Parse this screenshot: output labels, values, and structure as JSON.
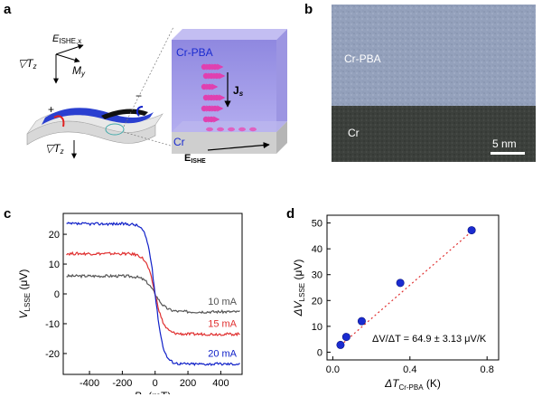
{
  "panels": {
    "a": {
      "letter": "a",
      "axis_e": "E",
      "axis_e_sub": "ISHE,x",
      "axis_grad": "▽T",
      "axis_grad_sub": "z",
      "axis_m": "M",
      "axis_m_sub": "y",
      "plus": "+",
      "minus": "−",
      "device_grad": "▽T",
      "device_grad_sub": "z",
      "inset_top_layer": "Cr-PBA",
      "inset_bottom_layer": "Cr",
      "inset_js": "J",
      "inset_js_sub": "s",
      "inset_e": "E",
      "inset_e_sub": "ISHE",
      "colors": {
        "pba_layer": "#a9a3e8",
        "cr_layer": "#c8c8c8",
        "spin_arrow": "#e040b0",
        "device_blue": "#2a3fd0"
      }
    },
    "b": {
      "letter": "b",
      "top_label": "Cr-PBA",
      "bottom_label": "Cr",
      "scale_bar": "5 nm"
    },
    "c": {
      "letter": "c"
    },
    "d": {
      "letter": "d"
    }
  },
  "chart_data": [
    {
      "type": "line",
      "panel": "c",
      "xlabel": "B",
      "xlabel_sub": "y",
      "xlabel_unit": " (mT)",
      "ylabel": "V",
      "ylabel_sub": "LSSE",
      "ylabel_unit": " (μV)",
      "xlim": [
        -560,
        530
      ],
      "ylim": [
        -27,
        27
      ],
      "xticks": [
        -400,
        -200,
        0,
        200,
        400
      ],
      "yticks": [
        -20,
        -10,
        0,
        10,
        20
      ],
      "series": [
        {
          "name": "10 mA",
          "color": "#555555",
          "saturation": 6.0,
          "width": 65
        },
        {
          "name": "15 mA",
          "color": "#e03030",
          "saturation": 13.5,
          "width": 55
        },
        {
          "name": "20 mA",
          "color": "#1020c8",
          "saturation": 23.5,
          "width": 50
        }
      ]
    },
    {
      "type": "scatter",
      "panel": "d",
      "xlabel": "ΔT",
      "xlabel_sub": "Cr-PBA",
      "xlabel_unit": " (K)",
      "ylabel": "ΔV",
      "ylabel_sub": "LSSE",
      "ylabel_unit": " (μV)",
      "xlim": [
        -0.03,
        0.86
      ],
      "ylim": [
        -3,
        53
      ],
      "xticks": [
        0.0,
        0.4,
        0.8
      ],
      "yticks": [
        0,
        10,
        20,
        30,
        40,
        50
      ],
      "points": [
        {
          "x": 0.04,
          "y": 2.8
        },
        {
          "x": 0.07,
          "y": 5.9
        },
        {
          "x": 0.15,
          "y": 12.0
        },
        {
          "x": 0.35,
          "y": 26.8
        },
        {
          "x": 0.72,
          "y": 47.2
        }
      ],
      "fit": {
        "slope": 64.9,
        "x_range": [
          0.04,
          0.73
        ]
      },
      "annotation": "ΔV/ΔT = 64.9 ± 3.13 μV/K",
      "colors": {
        "point": "#1a2bd0",
        "fit": "#e03030"
      }
    }
  ]
}
